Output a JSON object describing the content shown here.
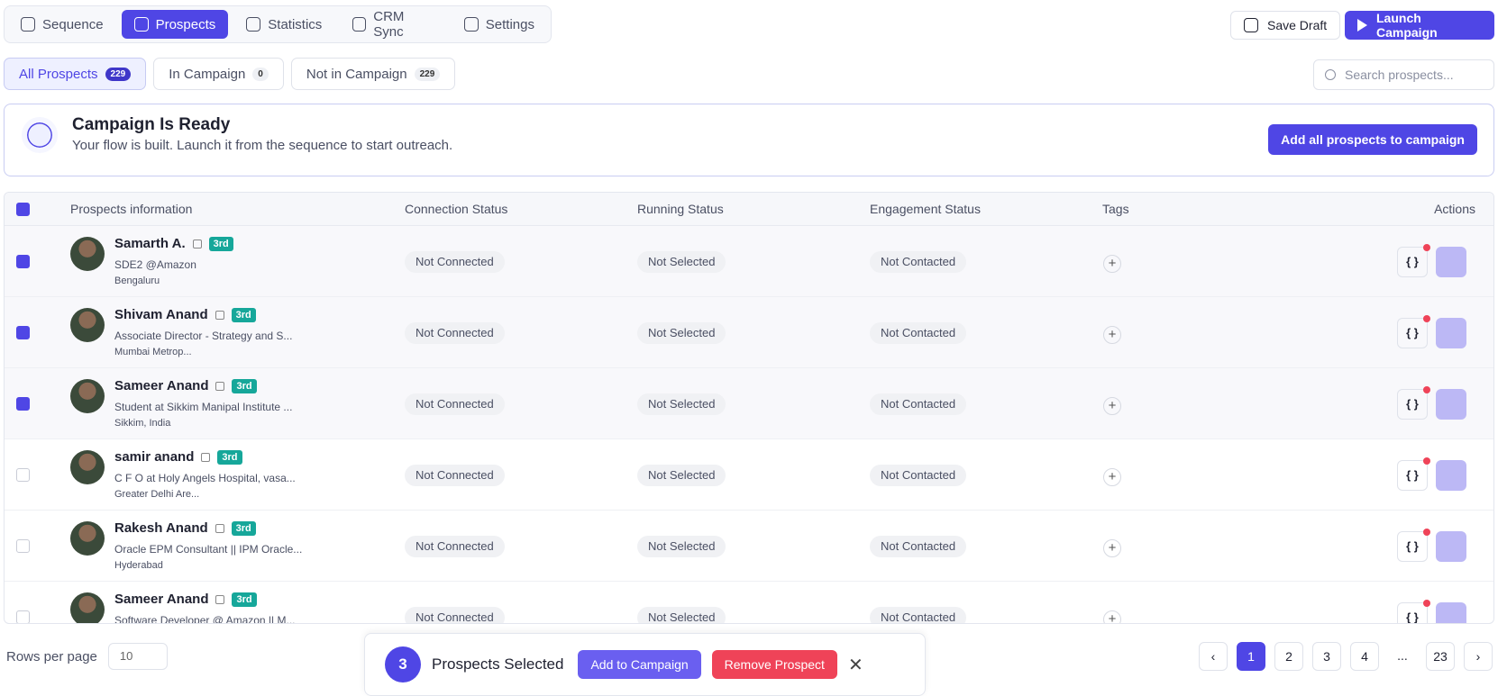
{
  "tabs": [
    "Sequence",
    "Prospects",
    "Statistics",
    "CRM Sync",
    "Settings"
  ],
  "header_actions": [
    "Save Draft",
    "Launch Campaign"
  ],
  "filters": [
    {
      "label": "All Prospects",
      "count": 229
    },
    {
      "label": "In Campaign",
      "count": 0
    },
    {
      "label": "Not in Campaign",
      "count": 229
    }
  ],
  "search_placeholder": "Search prospects...",
  "banner": {
    "title": "Campaign Is Ready",
    "text": "Your flow is built. Launch it from the sequence to start outreach.",
    "button": "Add all prospects to campaign"
  },
  "table": {
    "columns": [
      "Prospects information",
      "Connection Status",
      "Running Status",
      "Engagement Status",
      "Tags",
      "Actions"
    ],
    "variables_label": "{ }",
    "rows": [
      {
        "selected": true,
        "name": "Samarth A.",
        "degree": "3rd",
        "headline": "SDE2 @Amazon",
        "location": "Bengaluru",
        "connection": "Not Connected",
        "running": "Not Selected",
        "engagement": "Not Contacted"
      },
      {
        "selected": true,
        "name": "Shivam Anand",
        "degree": "3rd",
        "headline": "Associate Director - Strategy and S...",
        "location": "Mumbai Metrop...",
        "connection": "Not Connected",
        "running": "Not Selected",
        "engagement": "Not Contacted"
      },
      {
        "selected": true,
        "name": "Sameer Anand",
        "degree": "3rd",
        "headline": "Student at Sikkim Manipal Institute ...",
        "location": "Sikkim, India",
        "connection": "Not Connected",
        "running": "Not Selected",
        "engagement": "Not Contacted"
      },
      {
        "selected": false,
        "name": "samir anand",
        "degree": "3rd",
        "headline": "C F O at Holy Angels Hospital, vasa...",
        "location": "Greater Delhi Are...",
        "connection": "Not Connected",
        "running": "Not Selected",
        "engagement": "Not Contacted"
      },
      {
        "selected": false,
        "name": "Rakesh Anand",
        "degree": "3rd",
        "headline": "Oracle EPM Consultant || IPM Oracle...",
        "location": "Hyderabad",
        "connection": "Not Connected",
        "running": "Not Selected",
        "engagement": "Not Contacted"
      },
      {
        "selected": false,
        "name": "Sameer Anand",
        "degree": "3rd",
        "headline": "Software Developer @ Amazon || M...",
        "connection": "Not Connected",
        "running": "Not Selected",
        "engagement": "Not Contacted"
      }
    ]
  },
  "rows_per_page_label": "Rows per page",
  "rows_per_page": 10,
  "pagination": [
    1,
    2,
    3,
    4,
    "...",
    23
  ],
  "selection": {
    "count": 3,
    "label": "Prospects Selected",
    "actions": [
      "Add to Campaign",
      "Remove Prospect"
    ]
  }
}
